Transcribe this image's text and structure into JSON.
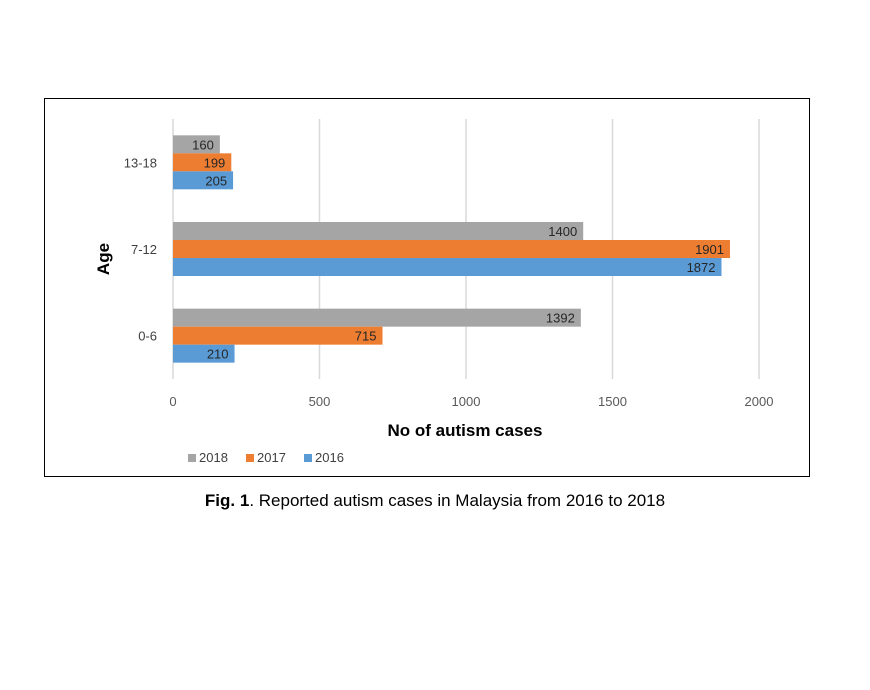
{
  "chart_data": {
    "type": "bar",
    "orientation": "horizontal",
    "categories": [
      "0-6",
      "7-12",
      "13-18"
    ],
    "series": [
      {
        "name": "2018",
        "values": [
          1392,
          1400,
          160
        ],
        "color": "#a5a5a5"
      },
      {
        "name": "2017",
        "values": [
          715,
          1901,
          199
        ],
        "color": "#ed7d31"
      },
      {
        "name": "2016",
        "values": [
          210,
          1872,
          205
        ],
        "color": "#5b9bd5"
      }
    ],
    "xlabel": "No of autism cases",
    "ylabel": "Age",
    "xlim": [
      0,
      2000
    ],
    "xticks": [
      "0",
      "500",
      "1000",
      "1500",
      "2000"
    ],
    "grid": "vertical",
    "legend_position": "bottom-left",
    "data_labels": true
  },
  "caption": {
    "label": "Fig. 1",
    "text": ". Reported autism cases in Malaysia from 2016 to 2018"
  }
}
